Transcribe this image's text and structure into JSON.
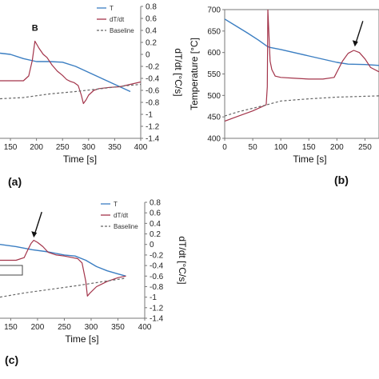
{
  "panels": {
    "a": {
      "label": "(a)"
    },
    "b": {
      "label": "(b)"
    },
    "c": {
      "label": "(c)"
    }
  },
  "chart_data": [
    {
      "type": "line",
      "panel": "a",
      "xlabel": "Time [s]",
      "y2label": "dT/dt [°C/s]",
      "xlim": [
        130,
        400
      ],
      "xticks": [
        150,
        200,
        250,
        300,
        350,
        400
      ],
      "y2lim": [
        -1.4,
        0.8
      ],
      "y2ticks": [
        0.8,
        0.6,
        0.4,
        0.2,
        0,
        -0.2,
        -0.4,
        -0.6,
        -0.8,
        -1,
        -1.2,
        -1.4
      ],
      "legend": [
        "T",
        "dT/dt",
        "Baseline"
      ],
      "legend_position": "top-right",
      "annotations": [
        {
          "text": "B",
          "x": 197,
          "y": 0.34
        }
      ],
      "series": [
        {
          "name": "T",
          "color": "#3b7ec2",
          "axis": "y2",
          "x": [
            130,
            150,
            175,
            200,
            225,
            250,
            275,
            300,
            325,
            350,
            380
          ],
          "y": [
            0.02,
            0.0,
            -0.07,
            -0.12,
            -0.12,
            -0.13,
            -0.2,
            -0.3,
            -0.4,
            -0.5,
            -0.62
          ]
        },
        {
          "name": "dT/dt",
          "color": "#a3344a",
          "axis": "y2",
          "x": [
            130,
            160,
            175,
            185,
            192,
            197,
            205,
            213,
            220,
            230,
            240,
            250,
            258,
            265,
            272,
            280,
            286,
            290,
            295,
            300,
            310,
            320,
            340,
            360,
            380,
            400
          ],
          "y": [
            -0.44,
            -0.44,
            -0.44,
            -0.36,
            -0.1,
            0.22,
            0.1,
            0.0,
            -0.05,
            -0.18,
            -0.28,
            -0.35,
            -0.42,
            -0.45,
            -0.47,
            -0.52,
            -0.68,
            -0.82,
            -0.76,
            -0.68,
            -0.6,
            -0.57,
            -0.55,
            -0.54,
            -0.5,
            -0.46
          ]
        },
        {
          "name": "Baseline",
          "color": "#666666",
          "axis": "y2",
          "dashed": true,
          "x": [
            130,
            175,
            225,
            275,
            325,
            375,
            400
          ],
          "y": [
            -0.74,
            -0.72,
            -0.66,
            -0.62,
            -0.57,
            -0.52,
            -0.5
          ]
        }
      ]
    },
    {
      "type": "line",
      "panel": "b",
      "xlabel": "Time [s]",
      "ylabel": "Temperature [°C]",
      "xlim": [
        0,
        275
      ],
      "xticks": [
        0,
        50,
        100,
        150,
        200,
        250
      ],
      "ylim": [
        400,
        700
      ],
      "yticks": [
        700,
        650,
        600,
        550,
        500,
        450,
        400
      ],
      "annotations": [
        {
          "type": "arrow",
          "x": 232,
          "y": 610
        }
      ],
      "series": [
        {
          "name": "T",
          "color": "#3b7ec2",
          "x": [
            0,
            20,
            40,
            60,
            75,
            80,
            100,
            150,
            200,
            220,
            250,
            275
          ],
          "y": [
            678,
            662,
            646,
            629,
            615,
            612,
            607,
            592,
            577,
            573,
            572,
            570
          ]
        },
        {
          "name": "dT/dt",
          "color": "#a3344a",
          "x": [
            0,
            25,
            50,
            74,
            76,
            77,
            79,
            81,
            84,
            90,
            100,
            125,
            150,
            175,
            195,
            210,
            220,
            230,
            240,
            250,
            260,
            275
          ],
          "y": [
            440,
            452,
            464,
            478,
            520,
            700,
            640,
            580,
            560,
            545,
            542,
            540,
            538,
            538,
            542,
            580,
            598,
            605,
            600,
            585,
            565,
            555
          ]
        },
        {
          "name": "Baseline",
          "color": "#666666",
          "dashed": true,
          "x": [
            0,
            25,
            50,
            75,
            100,
            150,
            200,
            250,
            275
          ],
          "y": [
            452,
            462,
            470,
            478,
            487,
            492,
            496,
            498,
            499
          ]
        }
      ]
    },
    {
      "type": "line",
      "panel": "c",
      "xlabel": "Time [s]",
      "y2label": "dT/dt [°C/s]",
      "xlim": [
        130,
        400
      ],
      "xticks": [
        150,
        200,
        250,
        300,
        350,
        400
      ],
      "y2lim": [
        -1.4,
        0.8
      ],
      "y2ticks": [
        0.8,
        0.6,
        0.4,
        0.2,
        0,
        -0.2,
        -0.4,
        -0.6,
        -0.8,
        -1,
        -1.2,
        -1.4
      ],
      "legend": [
        "T",
        "dT/dt",
        "Baseline"
      ],
      "legend_position": "top-right",
      "annotations": [
        {
          "type": "arrow",
          "x": 193,
          "y": 0.1
        }
      ],
      "series": [
        {
          "name": "T",
          "color": "#3b7ec2",
          "axis": "y2",
          "x": [
            130,
            160,
            190,
            220,
            250,
            270,
            290,
            310,
            330,
            350,
            365
          ],
          "y": [
            0.0,
            -0.04,
            -0.1,
            -0.14,
            -0.2,
            -0.22,
            -0.3,
            -0.42,
            -0.5,
            -0.56,
            -0.6
          ]
        },
        {
          "name": "dT/dt",
          "color": "#a3344a",
          "axis": "y2",
          "x": [
            130,
            160,
            175,
            182,
            188,
            193,
            200,
            210,
            220,
            235,
            250,
            265,
            275,
            283,
            290,
            293,
            298,
            310,
            330,
            350,
            365
          ],
          "y": [
            -0.3,
            -0.3,
            -0.25,
            -0.1,
            0.02,
            0.08,
            0.04,
            -0.04,
            -0.15,
            -0.2,
            -0.22,
            -0.25,
            -0.27,
            -0.35,
            -0.7,
            -0.98,
            -0.92,
            -0.8,
            -0.7,
            -0.63,
            -0.6
          ]
        },
        {
          "name": "Baseline",
          "color": "#666666",
          "axis": "y2",
          "dashed": true,
          "x": [
            130,
            175,
            225,
            275,
            325,
            365
          ],
          "y": [
            -1.0,
            -0.92,
            -0.85,
            -0.78,
            -0.7,
            -0.64
          ]
        }
      ]
    }
  ]
}
